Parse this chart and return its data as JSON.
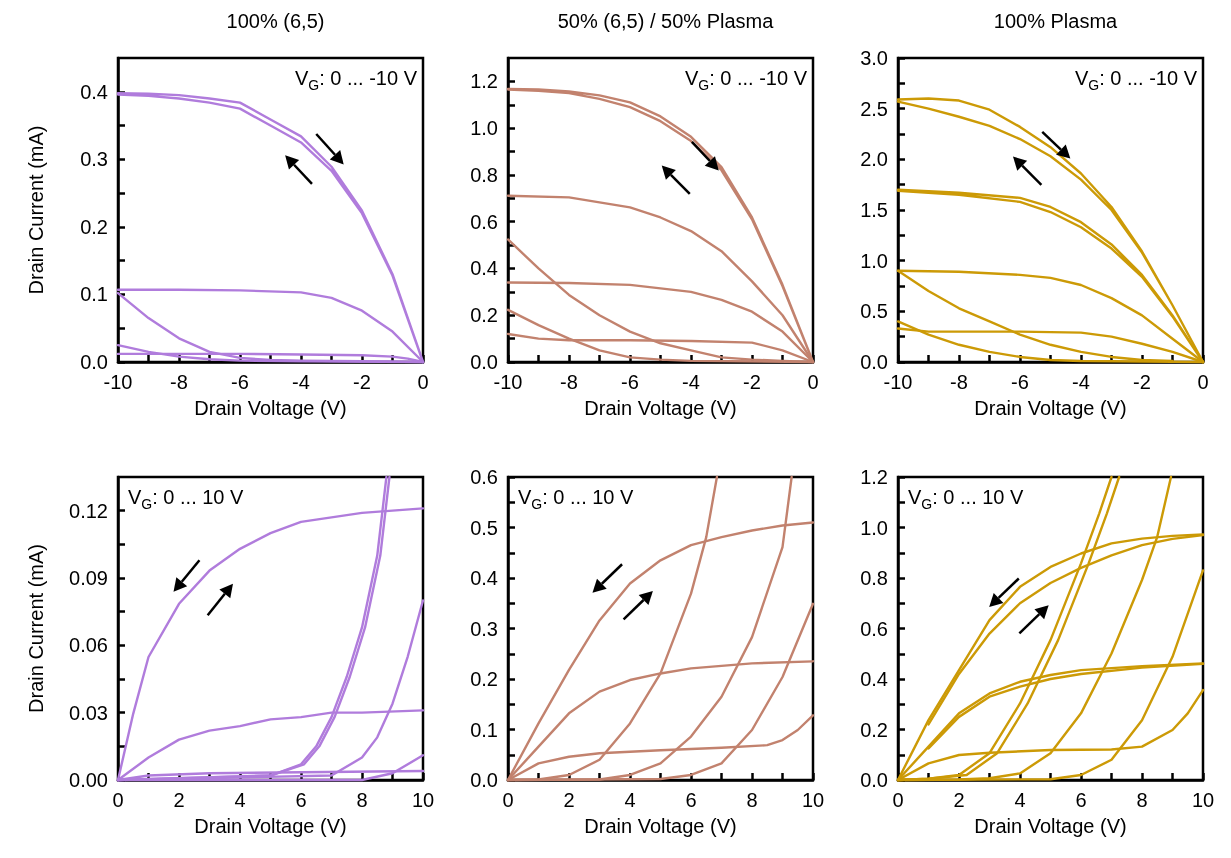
{
  "chart_data": [
    {
      "type": "line",
      "title": "100% (6,5)",
      "xlabel": "Drain Voltage (V)",
      "ylabel": "Drain Current (mA)",
      "annotations": [
        "V$_{G}$: 0 ... -10 V"
      ],
      "marker": "none",
      "xlim": [
        -10,
        0
      ],
      "xticks": [
        -10,
        {
          "value": -9,
          "label": null
        },
        -8,
        {
          "value": -7,
          "label": null
        },
        -6,
        {
          "value": -5,
          "label": null
        },
        -4,
        {
          "value": -3,
          "label": null
        },
        -2,
        {
          "value": -1,
          "label": null
        },
        0
      ],
      "ylim": [
        0,
        0.45
      ],
      "yticks": [
        {
          "value": 0,
          "label": "0.0"
        },
        {
          "value": 0.05,
          "label": null
        },
        {
          "value": 0.1,
          "label": "0.1"
        },
        {
          "value": 0.15,
          "label": null
        },
        {
          "value": 0.2,
          "label": "0.2"
        },
        {
          "value": 0.25,
          "label": null
        },
        {
          "value": 0.3,
          "label": "0.3"
        },
        {
          "value": 0.35,
          "label": null
        },
        {
          "value": 0.4,
          "label": "0.4"
        }
      ],
      "series": [
        {
          "color": "#b07cdc",
          "x": [
            -10,
            -9,
            -8,
            -7,
            -6,
            -5,
            -4,
            -3,
            -2,
            -1,
            0,
            -1,
            -2,
            -3,
            -4,
            -5,
            -6,
            -7,
            -8,
            -9,
            -10
          ],
          "values": [
            0.398,
            0.397,
            0.395,
            0.39,
            0.384,
            0.359,
            0.334,
            0.289,
            0.224,
            0.13,
            0,
            0.128,
            0.22,
            0.283,
            0.325,
            0.35,
            0.375,
            0.384,
            0.39,
            0.394,
            0.396
          ]
        },
        {
          "color": "#b07cdc",
          "x": [
            -10,
            -8,
            -6,
            -4,
            -3,
            -2,
            -1,
            0
          ],
          "values": [
            0.107,
            0.107,
            0.106,
            0.103,
            0.095,
            0.076,
            0.045,
            0
          ]
        },
        {
          "color": "#b07cdc",
          "x": [
            -10,
            -9,
            -8,
            -7,
            -6,
            -5,
            -4,
            -2,
            0
          ],
          "values": [
            0.102,
            0.065,
            0.035,
            0.015,
            0.006,
            0.003,
            0.002,
            0.001,
            0
          ]
        },
        {
          "color": "#b07cdc",
          "x": [
            -10,
            -9,
            -8,
            -7,
            -6,
            -4,
            0
          ],
          "values": [
            0.025,
            0.015,
            0.008,
            0.004,
            0.002,
            0.001,
            0
          ]
        },
        {
          "color": "#b07cdc",
          "x": [
            -10,
            -6,
            -4,
            -2,
            -1,
            -0.5,
            0
          ],
          "values": [
            0.012,
            0.012,
            0.011,
            0.01,
            0.008,
            0.005,
            0
          ]
        }
      ]
    },
    {
      "type": "line",
      "title": "50% (6,5) / 50% Plasma",
      "xlabel": "Drain Voltage (V)",
      "annotations": [
        "V$_{G}$: 0 ... -10 V"
      ],
      "marker": "none",
      "xlim": [
        -10,
        0
      ],
      "xticks": [
        -10,
        {
          "value": -9,
          "label": null
        },
        -8,
        {
          "value": -7,
          "label": null
        },
        -6,
        {
          "value": -5,
          "label": null
        },
        -4,
        {
          "value": -3,
          "label": null
        },
        -2,
        {
          "value": -1,
          "label": null
        },
        0
      ],
      "ylim": [
        0,
        1.3
      ],
      "yticks": [
        {
          "value": 0,
          "label": "0.0"
        },
        {
          "value": 0.1,
          "label": null
        },
        {
          "value": 0.2,
          "label": "0.2"
        },
        {
          "value": 0.3,
          "label": null
        },
        {
          "value": 0.4,
          "label": "0.4"
        },
        {
          "value": 0.5,
          "label": null
        },
        {
          "value": 0.6,
          "label": "0.6"
        },
        {
          "value": 0.7,
          "label": null
        },
        {
          "value": 0.8,
          "label": "0.8"
        },
        {
          "value": 0.9,
          "label": null
        },
        {
          "value": 1,
          "label": "1.0"
        },
        {
          "value": 1.1,
          "label": null
        },
        {
          "value": 1.2,
          "label": "1.2"
        }
      ],
      "series": [
        {
          "color": "#c2826e",
          "x": [
            -10,
            -9,
            -8,
            -7,
            -6,
            -5,
            -4,
            -3,
            -2,
            -1,
            0,
            -1,
            -2,
            -3,
            -4,
            -5,
            -6,
            -7,
            -8,
            -9,
            -10
          ],
          "values": [
            1.168,
            1.165,
            1.157,
            1.14,
            1.11,
            1.05,
            0.963,
            0.833,
            0.618,
            0.33,
            0,
            0.325,
            0.61,
            0.82,
            0.945,
            1.03,
            1.09,
            1.125,
            1.15,
            1.16,
            1.165
          ]
        },
        {
          "color": "#c2826e",
          "x": [
            -10,
            -8,
            -6,
            -5,
            -4,
            -3,
            -2,
            -1,
            0
          ],
          "values": [
            0.711,
            0.704,
            0.661,
            0.618,
            0.56,
            0.474,
            0.345,
            0.2,
            0
          ]
        },
        {
          "color": "#c2826e",
          "x": [
            -10,
            -8,
            -6,
            -4,
            -3,
            -2,
            -1,
            0
          ],
          "values": [
            0.34,
            0.338,
            0.33,
            0.3,
            0.266,
            0.215,
            0.13,
            0
          ]
        },
        {
          "color": "#c2826e",
          "x": [
            -10,
            -9,
            -8,
            -7,
            -6,
            -5,
            -4,
            -3,
            -2,
            -1,
            0
          ],
          "values": [
            0.524,
            0.4,
            0.287,
            0.2,
            0.13,
            0.08,
            0.05,
            0.02,
            0.01,
            0.005,
            0
          ]
        },
        {
          "color": "#c2826e",
          "x": [
            -10,
            -9,
            -8,
            -7,
            -6,
            -5,
            -4,
            0
          ],
          "values": [
            0.223,
            0.158,
            0.1,
            0.05,
            0.02,
            0.01,
            0.005,
            0
          ]
        },
        {
          "color": "#c2826e",
          "x": [
            -10,
            -9,
            -8,
            -6,
            -4,
            -2,
            -1,
            0
          ],
          "values": [
            0.12,
            0.1,
            0.093,
            0.093,
            0.09,
            0.083,
            0.05,
            0
          ]
        }
      ]
    },
    {
      "type": "line",
      "title": "100% Plasma",
      "xlabel": "Drain Voltage (V)",
      "annotations": [
        "V$_{G}$: 0 ... -10 V"
      ],
      "marker": "none",
      "xlim": [
        -10,
        0
      ],
      "xticks": [
        -10,
        {
          "value": -9,
          "label": null
        },
        -8,
        {
          "value": -7,
          "label": null
        },
        -6,
        {
          "value": -5,
          "label": null
        },
        -4,
        {
          "value": -3,
          "label": null
        },
        -2,
        {
          "value": -1,
          "label": null
        },
        0
      ],
      "ylim": [
        0,
        3
      ],
      "yticks": [
        {
          "value": 0,
          "label": "0.0"
        },
        {
          "value": 0.25,
          "label": null
        },
        {
          "value": 0.5,
          "label": "0.5"
        },
        {
          "value": 0.75,
          "label": null
        },
        {
          "value": 1,
          "label": "1.0"
        },
        {
          "value": 1.25,
          "label": null
        },
        {
          "value": 1.5,
          "label": "1.5"
        },
        {
          "value": 1.75,
          "label": null
        },
        {
          "value": 2,
          "label": "2.0"
        },
        {
          "value": 2.25,
          "label": null
        },
        {
          "value": 2.5,
          "label": "2.5"
        },
        {
          "value": 2.75,
          "label": null
        },
        {
          "value": 3,
          "label": "3.0"
        }
      ],
      "series": [
        {
          "color": "#cc9a06",
          "x": [
            -10,
            -9,
            -8,
            -7,
            -6,
            -5,
            -4,
            -3,
            -2,
            -1,
            0,
            -1,
            -2,
            -3,
            -4,
            -5,
            -6,
            -7,
            -8,
            -9,
            -10
          ],
          "values": [
            2.59,
            2.6,
            2.58,
            2.49,
            2.32,
            2.12,
            1.86,
            1.53,
            1.09,
            0.56,
            0,
            0.56,
            1.08,
            1.5,
            1.8,
            2.03,
            2.2,
            2.33,
            2.42,
            2.5,
            2.57
          ]
        },
        {
          "color": "#cc9a06",
          "x": [
            -10,
            -8,
            -6,
            -5,
            -4,
            -3,
            -2,
            -1,
            0,
            -1,
            -2,
            -3,
            -4,
            -5,
            -6,
            -8,
            -10
          ],
          "values": [
            1.7,
            1.67,
            1.62,
            1.53,
            1.38,
            1.16,
            0.86,
            0.46,
            0,
            0.45,
            0.84,
            1.12,
            1.33,
            1.48,
            1.58,
            1.65,
            1.69
          ]
        },
        {
          "color": "#cc9a06",
          "x": [
            -10,
            -8,
            -6,
            -5,
            -4,
            -3,
            -2,
            -1,
            0
          ],
          "values": [
            0.9,
            0.89,
            0.86,
            0.83,
            0.76,
            0.63,
            0.46,
            0.23,
            0
          ]
        },
        {
          "color": "#cc9a06",
          "x": [
            -10,
            -9,
            -8,
            -7,
            -6,
            -5,
            -4,
            -3,
            -2,
            -1
          ],
          "values": [
            0.9,
            0.7,
            0.53,
            0.4,
            0.27,
            0.17,
            0.1,
            0.05,
            0.02,
            0.01
          ]
        },
        {
          "color": "#cc9a06",
          "x": [
            -10,
            -9,
            -8,
            -7,
            -6,
            -5,
            -4,
            0
          ],
          "values": [
            0.4,
            0.27,
            0.17,
            0.1,
            0.05,
            0.02,
            0.01,
            0
          ]
        },
        {
          "color": "#cc9a06",
          "x": [
            -10,
            -9,
            -6,
            -4,
            -3,
            -2,
            -1,
            0
          ],
          "values": [
            0.33,
            0.3,
            0.3,
            0.29,
            0.25,
            0.18,
            0.1,
            0
          ]
        }
      ]
    },
    {
      "type": "line",
      "xlabel": "Drain Voltage (V)",
      "ylabel": "Drain Current (mA)",
      "annotations": [
        "V$_{G}$: 0 ... 10 V"
      ],
      "marker": "none",
      "xlim": [
        0,
        10
      ],
      "xticks": [
        0,
        {
          "value": 1,
          "label": null
        },
        2,
        {
          "value": 3,
          "label": null
        },
        4,
        {
          "value": 5,
          "label": null
        },
        6,
        {
          "value": 7,
          "label": null
        },
        8,
        {
          "value": 9,
          "label": null
        },
        10
      ],
      "ylim": [
        0,
        0.135
      ],
      "yticks": [
        {
          "value": 0,
          "label": "0.00"
        },
        {
          "value": 0.015,
          "label": null
        },
        {
          "value": 0.03,
          "label": "0.03"
        },
        {
          "value": 0.045,
          "label": null
        },
        {
          "value": 0.06,
          "label": "0.06"
        },
        {
          "value": 0.075,
          "label": null
        },
        {
          "value": 0.09,
          "label": "0.09"
        },
        {
          "value": 0.105,
          "label": null
        },
        {
          "value": 0.12,
          "label": "0.12"
        }
      ],
      "series": [
        {
          "color": "#b07cdc",
          "x": [
            0,
            0.5,
            1,
            2,
            3,
            4,
            5,
            6,
            7,
            8,
            9,
            10
          ],
          "values": [
            0,
            0.0296,
            0.0548,
            0.0785,
            0.0933,
            0.103,
            0.11,
            0.115,
            0.117,
            0.119,
            0.12,
            0.121
          ]
        },
        {
          "color": "#b07cdc",
          "x": [
            0,
            1,
            2,
            3,
            4,
            5,
            6,
            7,
            8,
            10
          ],
          "values": [
            0,
            0.01,
            0.018,
            0.022,
            0.024,
            0.027,
            0.028,
            0.03,
            0.03,
            0.031
          ]
        },
        {
          "color": "#b07cdc",
          "x": [
            0,
            5,
            6,
            6.5,
            7,
            7.5,
            8,
            8.5,
            8.8
          ],
          "values": [
            0,
            0.002,
            0.007,
            0.015,
            0.028,
            0.046,
            0.068,
            0.1,
            0.135
          ]
        },
        {
          "color": "#b07cdc",
          "x": [
            0,
            5,
            6.1,
            6.6,
            7.1,
            7.6,
            8.1,
            8.6,
            8.9
          ],
          "values": [
            0,
            0.002,
            0.007,
            0.015,
            0.028,
            0.046,
            0.068,
            0.1,
            0.135
          ]
        },
        {
          "color": "#b07cdc",
          "x": [
            0,
            7,
            8,
            8.5,
            9,
            9.5,
            10
          ],
          "values": [
            0,
            0.002,
            0.01,
            0.019,
            0.034,
            0.055,
            0.08
          ]
        },
        {
          "color": "#b07cdc",
          "x": [
            0,
            8,
            9,
            10
          ],
          "values": [
            0,
            0,
            0.003,
            0.011
          ]
        },
        {
          "color": "#b07cdc",
          "x": [
            0,
            1,
            3,
            10
          ],
          "values": [
            0,
            0.002,
            0.003,
            0.004
          ]
        }
      ]
    },
    {
      "type": "line",
      "xlabel": "Drain Voltage (V)",
      "annotations": [
        "V$_{G}$: 0 ... 10 V"
      ],
      "marker": "none",
      "xlim": [
        0,
        10
      ],
      "xticks": [
        0,
        {
          "value": 1,
          "label": null
        },
        2,
        {
          "value": 3,
          "label": null
        },
        4,
        {
          "value": 5,
          "label": null
        },
        6,
        {
          "value": 7,
          "label": null
        },
        8,
        {
          "value": 9,
          "label": null
        },
        10
      ],
      "ylim": [
        0,
        0.6
      ],
      "yticks": [
        {
          "value": 0,
          "label": "0.0"
        },
        {
          "value": 0.05,
          "label": null
        },
        {
          "value": 0.1,
          "label": "0.1"
        },
        {
          "value": 0.15,
          "label": null
        },
        {
          "value": 0.2,
          "label": "0.2"
        },
        {
          "value": 0.25,
          "label": null
        },
        {
          "value": 0.3,
          "label": "0.3"
        },
        {
          "value": 0.35,
          "label": null
        },
        {
          "value": 0.4,
          "label": "0.4"
        },
        {
          "value": 0.45,
          "label": null
        },
        {
          "value": 0.5,
          "label": "0.5"
        },
        {
          "value": 0.55,
          "label": null
        },
        {
          "value": 0.6,
          "label": "0.6"
        }
      ],
      "series": [
        {
          "color": "#c2826e",
          "x": [
            0,
            1,
            2,
            3,
            4,
            5,
            6,
            7,
            8,
            9,
            10
          ],
          "values": [
            0,
            0.112,
            0.218,
            0.316,
            0.389,
            0.435,
            0.465,
            0.481,
            0.494,
            0.504,
            0.51
          ]
        },
        {
          "color": "#c2826e",
          "x": [
            0,
            1,
            2,
            3,
            4,
            5,
            6,
            8,
            10
          ],
          "values": [
            0,
            0.066,
            0.132,
            0.175,
            0.198,
            0.211,
            0.221,
            0.231,
            0.235
          ]
        },
        {
          "color": "#c2826e",
          "x": [
            0,
            1,
            2,
            3,
            5,
            7,
            8.5,
            9,
            9.5,
            10
          ],
          "values": [
            0,
            0.033,
            0.046,
            0.053,
            0.059,
            0.064,
            0.069,
            0.079,
            0.099,
            0.128
          ]
        },
        {
          "color": "#c2826e",
          "x": [
            0,
            1,
            2,
            3,
            4,
            5,
            6,
            6.5,
            6.85
          ],
          "values": [
            0,
            0.001,
            0.01,
            0.04,
            0.112,
            0.211,
            0.369,
            0.481,
            0.6
          ]
        },
        {
          "color": "#c2826e",
          "x": [
            0,
            3,
            4,
            5,
            6,
            7,
            8,
            9,
            9.3
          ],
          "values": [
            0,
            0.001,
            0.01,
            0.033,
            0.086,
            0.165,
            0.283,
            0.461,
            0.6
          ]
        },
        {
          "color": "#c2826e",
          "x": [
            0,
            5,
            6,
            7,
            8,
            9,
            10
          ],
          "values": [
            0,
            0.002,
            0.01,
            0.033,
            0.099,
            0.204,
            0.349
          ]
        }
      ]
    },
    {
      "type": "line",
      "xlabel": "Drain Voltage (V)",
      "annotations": [
        "V$_{G}$: 0 ... 10 V"
      ],
      "marker": "none",
      "xlim": [
        0,
        10
      ],
      "xticks": [
        0,
        {
          "value": 1,
          "label": null
        },
        2,
        {
          "value": 3,
          "label": null
        },
        4,
        {
          "value": 5,
          "label": null
        },
        6,
        {
          "value": 7,
          "label": null
        },
        8,
        {
          "value": 9,
          "label": null
        },
        10
      ],
      "ylim": [
        0,
        1.2
      ],
      "yticks": [
        {
          "value": 0,
          "label": "0.0"
        },
        {
          "value": 0.1,
          "label": null
        },
        {
          "value": 0.2,
          "label": "0.2"
        },
        {
          "value": 0.3,
          "label": null
        },
        {
          "value": 0.4,
          "label": "0.4"
        },
        {
          "value": 0.5,
          "label": null
        },
        {
          "value": 0.6,
          "label": "0.6"
        },
        {
          "value": 0.7,
          "label": null
        },
        {
          "value": 0.8,
          "label": "0.8"
        },
        {
          "value": 0.9,
          "label": null
        },
        {
          "value": 1,
          "label": "1.0"
        },
        {
          "value": 1.1,
          "label": null
        },
        {
          "value": 1.2,
          "label": "1.2"
        }
      ],
      "series": [
        {
          "color": "#cc9a06",
          "x": [
            0,
            1,
            2,
            3,
            4,
            5,
            6,
            7,
            8,
            9,
            10
          ],
          "values": [
            0,
            0.237,
            0.435,
            0.633,
            0.765,
            0.844,
            0.897,
            0.937,
            0.956,
            0.967,
            0.972
          ]
        },
        {
          "color": "#cc9a06",
          "x": [
            1,
            2,
            3,
            4,
            5,
            6,
            7,
            8,
            9,
            10
          ],
          "values": [
            0.22,
            0.42,
            0.58,
            0.7,
            0.78,
            0.84,
            0.89,
            0.93,
            0.955,
            0.97
          ]
        },
        {
          "color": "#cc9a06",
          "x": [
            0,
            1,
            2,
            3,
            4,
            5,
            6,
            8,
            10
          ],
          "values": [
            0,
            0.132,
            0.264,
            0.343,
            0.389,
            0.416,
            0.435,
            0.451,
            0.462
          ]
        },
        {
          "color": "#cc9a06",
          "x": [
            1,
            2,
            3,
            4,
            5,
            6,
            8,
            10
          ],
          "values": [
            0.125,
            0.25,
            0.33,
            0.37,
            0.4,
            0.42,
            0.445,
            0.46
          ]
        },
        {
          "color": "#cc9a06",
          "x": [
            0,
            1,
            2,
            3,
            5,
            7,
            8,
            9,
            9.5,
            10
          ],
          "values": [
            0,
            0.066,
            0.099,
            0.108,
            0.119,
            0.121,
            0.132,
            0.198,
            0.264,
            0.356
          ]
        },
        {
          "color": "#cc9a06",
          "x": [
            0,
            1,
            2,
            3,
            4,
            5,
            6,
            6.6,
            7
          ],
          "values": [
            0,
            0.005,
            0.02,
            0.106,
            0.303,
            0.554,
            0.858,
            1.056,
            1.2
          ]
        },
        {
          "color": "#cc9a06",
          "x": [
            0,
            1,
            2.25,
            3.25,
            4.25,
            5.25,
            6.25,
            6.85,
            7.25
          ],
          "values": [
            0,
            0.005,
            0.02,
            0.106,
            0.303,
            0.554,
            0.858,
            1.056,
            1.2
          ]
        },
        {
          "color": "#cc9a06",
          "x": [
            0,
            2,
            3,
            4,
            5,
            6,
            7,
            8,
            8.5,
            8.95
          ],
          "values": [
            0,
            0.002,
            0.007,
            0.026,
            0.106,
            0.264,
            0.501,
            0.792,
            0.963,
            1.2
          ]
        },
        {
          "color": "#cc9a06",
          "x": [
            0,
            5,
            6,
            7,
            8,
            9,
            10
          ],
          "values": [
            0,
            0.003,
            0.02,
            0.08,
            0.237,
            0.488,
            0.83
          ]
        }
      ]
    }
  ]
}
